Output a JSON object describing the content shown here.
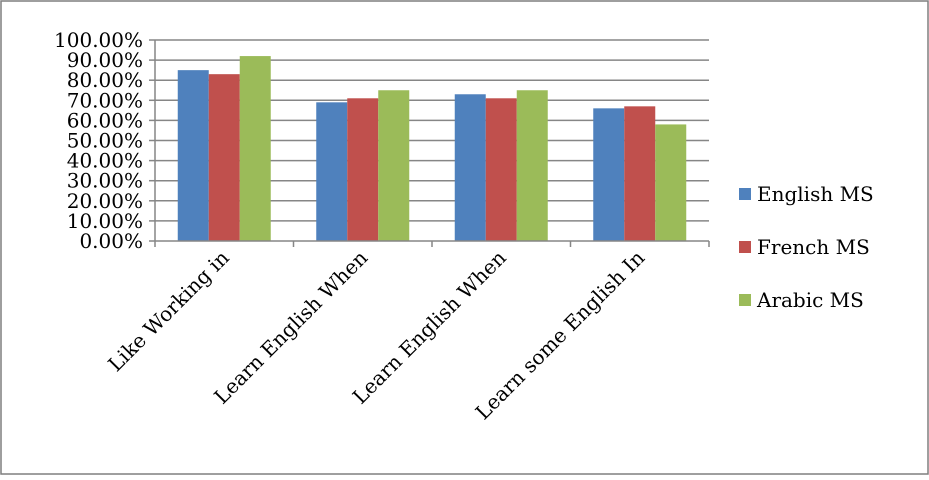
{
  "chart_data": {
    "type": "bar",
    "categories": [
      "Like Working in",
      "Learn English When",
      "Learn English When",
      "Learn some English In"
    ],
    "series": [
      {
        "name": "English MS",
        "values": [
          0.85,
          0.69,
          0.73,
          0.66
        ],
        "color": "#4F81BD"
      },
      {
        "name": "French MS",
        "values": [
          0.83,
          0.71,
          0.71,
          0.67
        ],
        "color": "#C0504D"
      },
      {
        "name": "Arabic MS",
        "values": [
          0.92,
          0.75,
          0.75,
          0.58
        ],
        "color": "#9BBB59"
      }
    ],
    "ylim": [
      0,
      1
    ],
    "yticks": [
      "0.00%",
      "10.00%",
      "20.00%",
      "30.00%",
      "40.00%",
      "50.00%",
      "60.00%",
      "70.00%",
      "80.00%",
      "90.00%",
      "100.00%"
    ],
    "grid": true,
    "legend": "right",
    "title": "",
    "xlabel": "",
    "ylabel": ""
  }
}
